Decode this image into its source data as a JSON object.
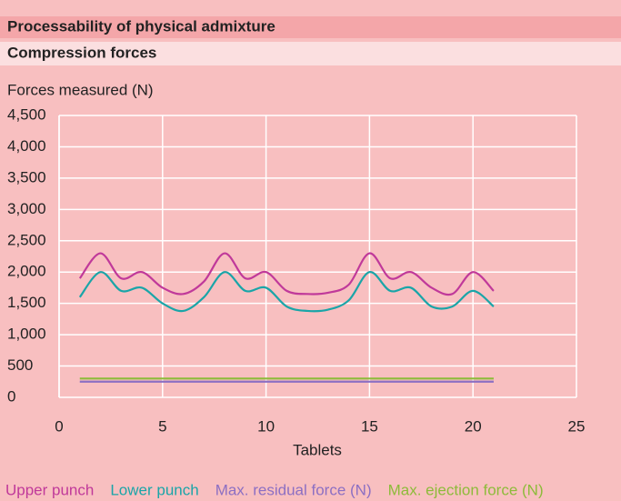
{
  "chart_data": {
    "type": "line",
    "title": "Processability of physical admixture",
    "subtitle": "Compression forces",
    "y_label": "Forces measured (N)",
    "x_label": "Tablets",
    "x": [
      1,
      2,
      3,
      4,
      5,
      6,
      7,
      8,
      9,
      10,
      11,
      12,
      13,
      14,
      15,
      16,
      17,
      18,
      19,
      20,
      21
    ],
    "series": [
      {
        "name": "Upper punch",
        "color": "#c0399a",
        "values": [
          1900,
          2300,
          1900,
          2000,
          1750,
          1650,
          1850,
          2300,
          1900,
          2000,
          1700,
          1650,
          1670,
          1800,
          2300,
          1900,
          2000,
          1750,
          1650,
          2000,
          1700
        ]
      },
      {
        "name": "Lower punch",
        "color": "#1aa5a8",
        "values": [
          1600,
          2000,
          1700,
          1750,
          1500,
          1380,
          1600,
          2000,
          1700,
          1750,
          1450,
          1380,
          1400,
          1550,
          2000,
          1700,
          1750,
          1450,
          1450,
          1700,
          1450
        ]
      },
      {
        "name": "Max. residual force (N)",
        "color": "#8c6fc3",
        "values": [
          250,
          250,
          250,
          250,
          250,
          250,
          250,
          250,
          250,
          250,
          250,
          250,
          250,
          250,
          250,
          250,
          250,
          250,
          250,
          250,
          250
        ]
      },
      {
        "name": "Max. ejection force (N)",
        "color": "#8dbb3a",
        "values": [
          300,
          300,
          300,
          300,
          300,
          300,
          300,
          300,
          300,
          300,
          300,
          300,
          300,
          300,
          300,
          300,
          300,
          300,
          300,
          300,
          300
        ]
      }
    ],
    "xlim": [
      0,
      25
    ],
    "xticks": [
      0,
      5,
      10,
      15,
      20,
      25
    ],
    "ylim": [
      0,
      4500
    ],
    "yticks": [
      0,
      500,
      {
        "value": 1000,
        "label": "1,000"
      },
      {
        "value": 1500,
        "label": "1,500"
      },
      {
        "value": 2000,
        "label": "2,000"
      },
      {
        "value": 2500,
        "label": "2,500"
      },
      {
        "value": 3000,
        "label": "3,000"
      },
      {
        "value": 3500,
        "label": "3,500"
      },
      {
        "value": 4000,
        "label": "4,000"
      },
      {
        "value": 4500,
        "label": "4,500"
      }
    ],
    "grid": true
  }
}
